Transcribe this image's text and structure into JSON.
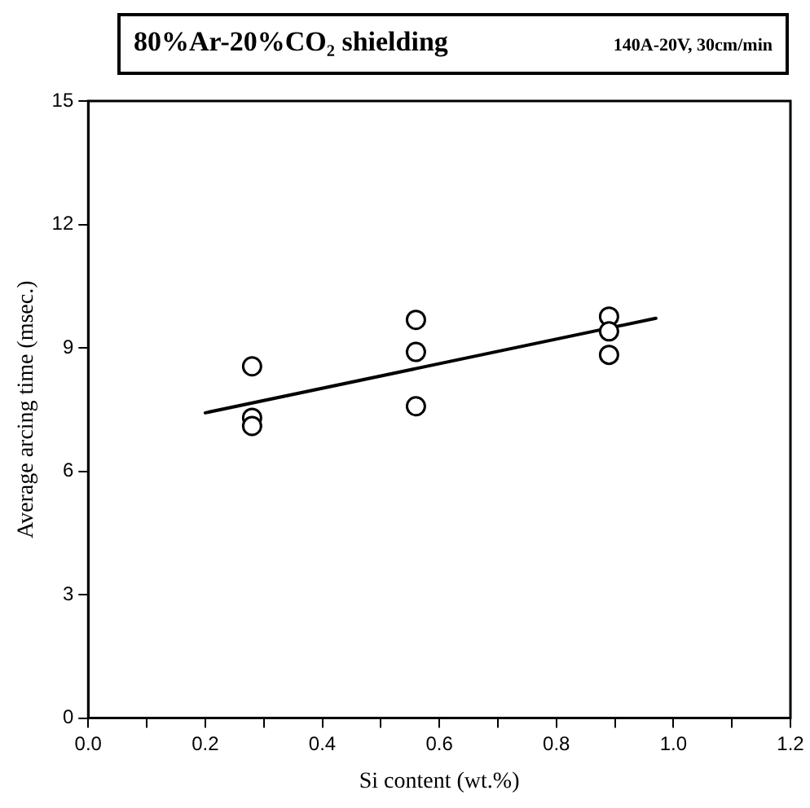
{
  "chart_data": {
    "type": "scatter",
    "title": "80%Ar-20%CO₂ shielding",
    "subtitle": "140A-20V, 30cm/min",
    "xlabel": "Si content (wt.%)",
    "ylabel": "Average arcing time (msec.)",
    "xlim": [
      0,
      1.2
    ],
    "xticks": [
      {
        "value": 0,
        "label": "0.0"
      },
      {
        "value": 0.1,
        "label": null
      },
      {
        "value": 0.2,
        "label": "0.2"
      },
      {
        "value": 0.3,
        "label": null
      },
      {
        "value": 0.4,
        "label": "0.4"
      },
      {
        "value": 0.5,
        "label": null
      },
      {
        "value": 0.6,
        "label": "0.6"
      },
      {
        "value": 0.7,
        "label": null
      },
      {
        "value": 0.8,
        "label": "0.8"
      },
      {
        "value": 0.9,
        "label": null
      },
      {
        "value": 1,
        "label": "1.0"
      },
      {
        "value": 1.1,
        "label": null
      },
      {
        "value": 1.2,
        "label": "1.2"
      }
    ],
    "ylim": [
      0,
      15
    ],
    "yticks": [
      0,
      3,
      6,
      9,
      12,
      15
    ],
    "series": [
      {
        "color": "#000000",
        "marker": "circle",
        "x": [
          0.28,
          0.28,
          0.28,
          0.56,
          0.56,
          0.56,
          0.89,
          0.89,
          0.89
        ],
        "values": [
          8.55,
          7.3,
          7.1,
          9.68,
          8.9,
          7.58,
          9.76,
          9.4,
          8.83
        ]
      },
      {
        "type": "line",
        "color": "#000000",
        "marker": "none",
        "line_style": "solid",
        "x": [
          0.2,
          0.97
        ],
        "values": [
          7.42,
          9.72
        ]
      }
    ]
  }
}
